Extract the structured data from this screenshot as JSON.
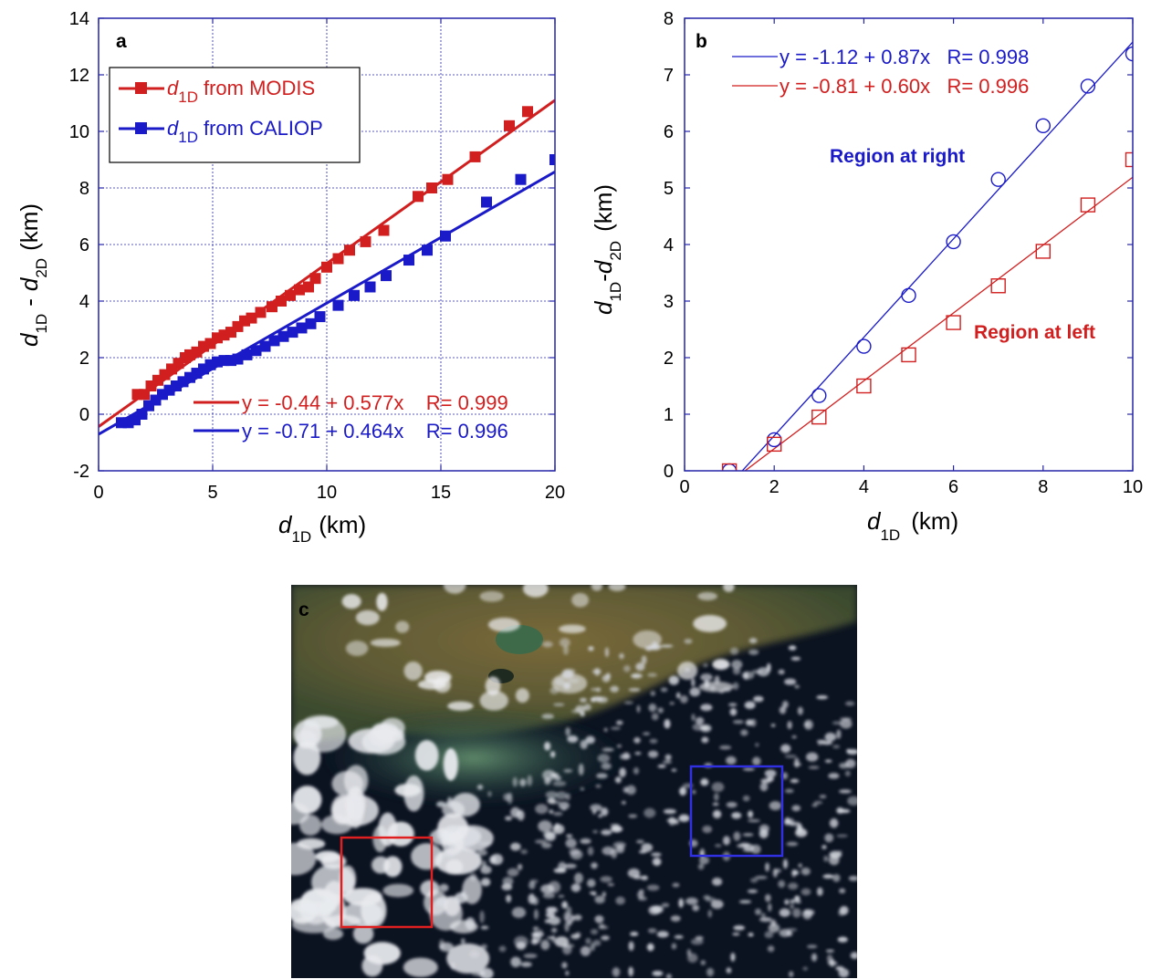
{
  "colors": {
    "red": "#d11f1f",
    "blue": "#1a1ac8",
    "frame": "#2424a8",
    "grid": "#2424a8"
  },
  "chart_data": [
    {
      "panel": "a",
      "type": "scatter",
      "title": "",
      "xlabel": {
        "var": "d",
        "sub": "1D",
        "unit": "(km)"
      },
      "ylabel": {
        "parts": [
          {
            "var": "d",
            "sub": "1D"
          },
          {
            "text": "-"
          },
          {
            "var": "d",
            "sub": "2D"
          }
        ],
        "unit": "(km)"
      },
      "xlim": [
        0,
        20
      ],
      "ylim": [
        -2,
        14
      ],
      "xticks": [
        "0",
        "5",
        "10",
        "15",
        "20"
      ],
      "yticks": [
        "-2",
        "0",
        "2",
        "4",
        "6",
        "8",
        "10",
        "12",
        "14"
      ],
      "grid": true,
      "legend_position": "top-left",
      "series": [
        {
          "name": "d1D from MODIS",
          "legend_var": "d",
          "legend_sub": "1D",
          "legend_rest": "from MODIS",
          "color": "#d11f1f",
          "marker": "filled-square",
          "x": [
            1.7,
            2.0,
            2.3,
            2.6,
            2.9,
            3.2,
            3.5,
            3.8,
            4.0,
            4.3,
            4.6,
            4.9,
            5.2,
            5.5,
            5.8,
            6.1,
            6.4,
            6.7,
            7.1,
            7.6,
            8.0,
            8.4,
            8.8,
            9.2,
            9.5,
            10.0,
            10.5,
            11.0,
            11.7,
            12.5,
            14.0,
            14.6,
            15.3,
            16.5,
            18.0,
            18.8
          ],
          "y": [
            0.7,
            0.7,
            1.0,
            1.2,
            1.4,
            1.6,
            1.8,
            2.0,
            2.1,
            2.2,
            2.4,
            2.5,
            2.7,
            2.8,
            2.9,
            3.1,
            3.3,
            3.4,
            3.6,
            3.8,
            4.0,
            4.2,
            4.4,
            4.5,
            4.8,
            5.2,
            5.5,
            5.8,
            6.1,
            6.5,
            7.7,
            8.0,
            8.3,
            9.1,
            10.2,
            10.7
          ]
        },
        {
          "name": "d1D from CALIOP",
          "legend_var": "d",
          "legend_sub": "1D",
          "legend_rest": "from CALIOP",
          "color": "#1a1ac8",
          "marker": "filled-square",
          "x": [
            1.0,
            1.3,
            1.6,
            1.9,
            2.2,
            2.5,
            2.8,
            3.1,
            3.4,
            3.7,
            4.0,
            4.3,
            4.6,
            4.9,
            5.2,
            5.5,
            5.8,
            6.1,
            6.5,
            6.9,
            7.3,
            7.7,
            8.1,
            8.5,
            8.9,
            9.3,
            9.7,
            10.5,
            11.2,
            11.9,
            12.6,
            13.6,
            14.4,
            15.2,
            17.0,
            18.5,
            20.0
          ],
          "y": [
            -0.3,
            -0.3,
            -0.2,
            0.0,
            0.3,
            0.5,
            0.7,
            0.85,
            1.0,
            1.15,
            1.3,
            1.45,
            1.6,
            1.75,
            1.85,
            1.9,
            1.9,
            1.95,
            2.1,
            2.25,
            2.4,
            2.6,
            2.75,
            2.9,
            3.05,
            3.2,
            3.45,
            3.85,
            4.2,
            4.5,
            4.9,
            5.45,
            5.8,
            6.3,
            7.5,
            8.3,
            9.0
          ]
        }
      ],
      "fits": [
        {
          "color": "#d11f1f",
          "intercept": -0.44,
          "slope": 0.577,
          "label": "y = -0.44 + 0.577x    R= 0.999"
        },
        {
          "color": "#1a1ac8",
          "intercept": -0.71,
          "slope": 0.464,
          "label": "y = -0.71 + 0.464x    R= 0.996"
        }
      ]
    },
    {
      "panel": "b",
      "type": "scatter",
      "title": "",
      "xlabel": {
        "var": "d",
        "sub": "1D",
        "unit": "(km)"
      },
      "ylabel": {
        "parts": [
          {
            "var": "d",
            "sub": "1D"
          },
          {
            "text": "-"
          },
          {
            "var": "d",
            "sub": "2D"
          }
        ],
        "unit": "(km)"
      },
      "xlim": [
        0,
        10
      ],
      "ylim": [
        0,
        8
      ],
      "xticks": [
        "0",
        "2",
        "4",
        "6",
        "8",
        "10"
      ],
      "yticks": [
        "0",
        "1",
        "2",
        "3",
        "4",
        "5",
        "6",
        "7",
        "8"
      ],
      "grid": false,
      "series": [
        {
          "name": "Region at right",
          "color": "#1a1ac8",
          "marker": "open-circle",
          "x": [
            1,
            2,
            3,
            4,
            5,
            6,
            7,
            8,
            9,
            10
          ],
          "y": [
            0.0,
            0.55,
            1.33,
            2.2,
            3.1,
            4.05,
            5.15,
            6.1,
            6.8,
            7.37
          ]
        },
        {
          "name": "Region at left",
          "color": "#d11f1f",
          "marker": "open-square",
          "x": [
            1,
            2,
            3,
            4,
            5,
            6,
            7,
            8,
            9,
            10
          ],
          "y": [
            0.0,
            0.47,
            0.95,
            1.5,
            2.05,
            2.62,
            3.27,
            3.88,
            4.7,
            5.5
          ]
        }
      ],
      "fits": [
        {
          "color": "#1a1ac8",
          "intercept": -1.12,
          "slope": 0.87,
          "label": "y = -1.12 + 0.87x   R= 0.998"
        },
        {
          "color": "#d11f1f",
          "intercept": -0.81,
          "slope": 0.6,
          "label": "y = -0.81 + 0.60x   R= 0.996"
        }
      ],
      "annotations": [
        "Region at right",
        "Region at left"
      ]
    }
  ],
  "panel_c": {
    "letter": "c",
    "description_boxes": [
      {
        "name": "red-region-box",
        "color": "#e02020"
      },
      {
        "name": "blue-region-box",
        "color": "#3030e0"
      }
    ]
  }
}
